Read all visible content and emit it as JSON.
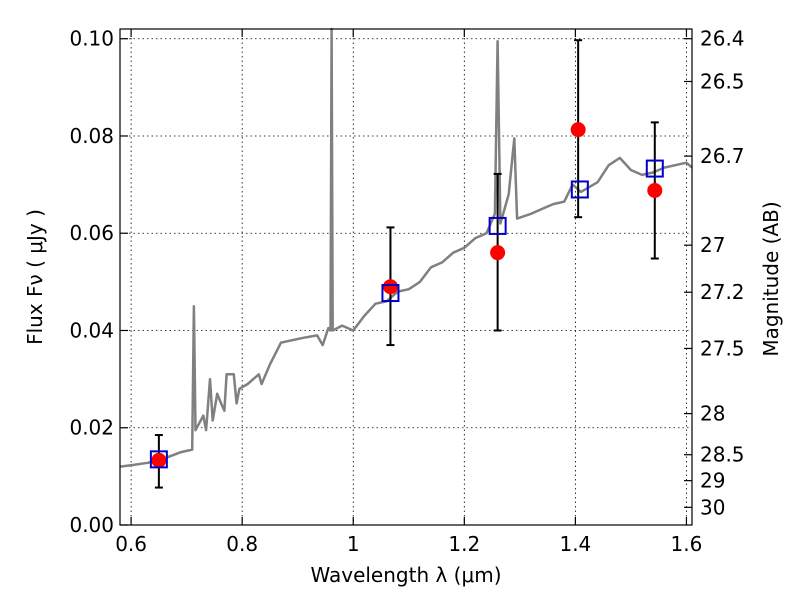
{
  "chart_data": {
    "type": "scatter",
    "xlabel": "Wavelength  λ (μm)",
    "ylabel": "Flux  Fν  ( μJy )",
    "y2label": "Magnitude (AB)",
    "xlim": [
      0.58,
      1.61
    ],
    "ylim": [
      0.0,
      0.102
    ],
    "x_ticks": [
      0.6,
      0.8,
      1,
      1.2,
      1.4,
      1.6
    ],
    "x_tick_labels": [
      "0.6",
      "0.8",
      "1",
      "1.2",
      "1.4",
      "1.6"
    ],
    "y_ticks": [
      0.0,
      0.02,
      0.04,
      0.06,
      0.08,
      0.1
    ],
    "y_tick_labels": [
      "0.00",
      "0.02",
      "0.04",
      "0.06",
      "0.08",
      "0.10"
    ],
    "y2_ticks": [
      {
        "label": "26.4",
        "mag": 26.4
      },
      {
        "label": "26.5",
        "mag": 26.5
      },
      {
        "label": "26.7",
        "mag": 26.7
      },
      {
        "label": "27",
        "mag": 27.0
      },
      {
        "label": "27.2",
        "mag": 27.2
      },
      {
        "label": "27.5",
        "mag": 27.5
      },
      {
        "label": "28",
        "mag": 28.0
      },
      {
        "label": "28.5",
        "mag": 28.5
      },
      {
        "label": "29",
        "mag": 29.0
      },
      {
        "label": "30",
        "mag": 30.0
      }
    ],
    "grid": true,
    "colors": {
      "spectrum": "#808080",
      "observed": "#ff0000",
      "model": "#0000cc",
      "errorbar": "#000000"
    },
    "observed": [
      {
        "x": 0.65,
        "y": 0.0133,
        "ylo": 0.0077,
        "yhi": 0.0185
      },
      {
        "x": 1.067,
        "y": 0.049,
        "ylo": 0.037,
        "yhi": 0.0612
      },
      {
        "x": 1.26,
        "y": 0.056,
        "ylo": 0.04,
        "yhi": 0.0722
      },
      {
        "x": 1.405,
        "y": 0.0813,
        "ylo": 0.0633,
        "yhi": 0.0997
      },
      {
        "x": 1.543,
        "y": 0.0688,
        "ylo": 0.0548,
        "yhi": 0.0828
      }
    ],
    "model": [
      {
        "x": 0.65,
        "y": 0.0135
      },
      {
        "x": 1.067,
        "y": 0.0477
      },
      {
        "x": 1.26,
        "y": 0.0615
      },
      {
        "x": 1.408,
        "y": 0.069
      },
      {
        "x": 1.543,
        "y": 0.0733
      }
    ],
    "spectrum": [
      [
        0.58,
        0.012
      ],
      [
        0.6,
        0.0123
      ],
      [
        0.63,
        0.0128
      ],
      [
        0.66,
        0.0137
      ],
      [
        0.69,
        0.015
      ],
      [
        0.71,
        0.0155
      ],
      [
        0.713,
        0.045
      ],
      [
        0.716,
        0.0195
      ],
      [
        0.73,
        0.0225
      ],
      [
        0.735,
        0.0195
      ],
      [
        0.742,
        0.03
      ],
      [
        0.747,
        0.0215
      ],
      [
        0.755,
        0.027
      ],
      [
        0.762,
        0.025
      ],
      [
        0.768,
        0.0235
      ],
      [
        0.772,
        0.031
      ],
      [
        0.785,
        0.031
      ],
      [
        0.79,
        0.025
      ],
      [
        0.795,
        0.028
      ],
      [
        0.81,
        0.029
      ],
      [
        0.82,
        0.03
      ],
      [
        0.83,
        0.031
      ],
      [
        0.835,
        0.029
      ],
      [
        0.85,
        0.033
      ],
      [
        0.87,
        0.0375
      ],
      [
        0.89,
        0.038
      ],
      [
        0.91,
        0.0385
      ],
      [
        0.935,
        0.039
      ],
      [
        0.945,
        0.037
      ],
      [
        0.955,
        0.0405
      ],
      [
        0.959,
        0.04
      ],
      [
        0.961,
        0.102
      ],
      [
        0.963,
        0.04
      ],
      [
        0.98,
        0.041
      ],
      [
        1.0,
        0.04
      ],
      [
        1.02,
        0.043
      ],
      [
        1.04,
        0.0455
      ],
      [
        1.06,
        0.046
      ],
      [
        1.08,
        0.048
      ],
      [
        1.1,
        0.0485
      ],
      [
        1.12,
        0.05
      ],
      [
        1.14,
        0.053
      ],
      [
        1.16,
        0.054
      ],
      [
        1.18,
        0.056
      ],
      [
        1.2,
        0.057
      ],
      [
        1.22,
        0.059
      ],
      [
        1.24,
        0.06
      ],
      [
        1.255,
        0.064
      ],
      [
        1.26,
        0.0995
      ],
      [
        1.265,
        0.062
      ],
      [
        1.28,
        0.068
      ],
      [
        1.29,
        0.0795
      ],
      [
        1.295,
        0.063
      ],
      [
        1.32,
        0.064
      ],
      [
        1.34,
        0.065
      ],
      [
        1.36,
        0.066
      ],
      [
        1.38,
        0.0665
      ],
      [
        1.395,
        0.07
      ],
      [
        1.41,
        0.0685
      ],
      [
        1.44,
        0.0705
      ],
      [
        1.46,
        0.074
      ],
      [
        1.48,
        0.0755
      ],
      [
        1.5,
        0.073
      ],
      [
        1.52,
        0.072
      ],
      [
        1.54,
        0.0725
      ],
      [
        1.56,
        0.0735
      ],
      [
        1.58,
        0.074
      ],
      [
        1.6,
        0.0745
      ],
      [
        1.61,
        0.0735
      ]
    ]
  }
}
